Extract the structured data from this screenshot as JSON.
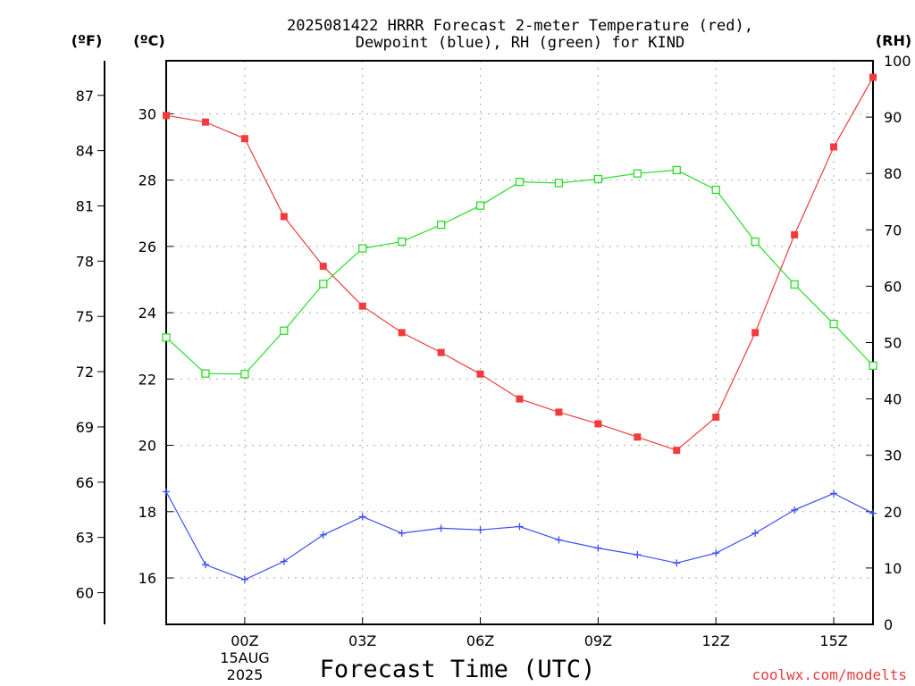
{
  "chart_data": {
    "type": "line",
    "title_line1": "2025081422 HRRR Forecast 2-meter Temperature (red),",
    "title_line2": "Dewpoint (blue), RH (green) for KIND",
    "xlabel": "Forecast Time (UTC)",
    "x": [
      -2,
      -1,
      0,
      1,
      2,
      3,
      4,
      5,
      6,
      7,
      8,
      9,
      10,
      11,
      12,
      13,
      14,
      15,
      16
    ],
    "x_tick_values": [
      0,
      3,
      6,
      9,
      12,
      15
    ],
    "x_tick_labels": [
      "00Z",
      "03Z",
      "06Z",
      "09Z",
      "12Z",
      "15Z"
    ],
    "date_label_line1": "15AUG",
    "date_label_line2": "2025",
    "xlim": [
      -2,
      16
    ],
    "left_axis": {
      "unit": "(ºC)",
      "ylim": [
        14.6,
        31.6
      ],
      "ticks": [
        16,
        18,
        20,
        22,
        24,
        26,
        28,
        30
      ]
    },
    "far_left_axis": {
      "unit": "(ºF)",
      "ticks": [
        60,
        63,
        66,
        69,
        72,
        75,
        78,
        81,
        84,
        87
      ]
    },
    "right_axis": {
      "unit": "(RH)",
      "ylim": [
        0,
        100
      ],
      "ticks": [
        0,
        10,
        20,
        30,
        40,
        50,
        60,
        70,
        80,
        90,
        100
      ]
    },
    "grid": true,
    "series": [
      {
        "key": "temperature",
        "axis": "C",
        "color": "#f03c3c",
        "marker": "filled-square",
        "values": [
          29.95,
          29.75,
          29.25,
          26.9,
          25.4,
          24.2,
          23.4,
          22.8,
          22.15,
          21.4,
          21.0,
          20.65,
          20.25,
          19.85,
          20.85,
          23.4,
          26.35,
          29.0,
          31.1
        ]
      },
      {
        "key": "dewpoint",
        "axis": "C",
        "color": "#3c50f0",
        "marker": "plus",
        "values": [
          18.6,
          16.4,
          15.95,
          16.5,
          17.3,
          17.85,
          17.35,
          17.5,
          17.45,
          17.55,
          17.15,
          16.9,
          16.7,
          16.45,
          16.75,
          17.35,
          18.05,
          18.55,
          17.95
        ]
      },
      {
        "key": "rh",
        "axis": "RH",
        "color": "#28dc28",
        "marker": "open-square",
        "values": [
          50.9,
          44.5,
          44.4,
          52.1,
          60.4,
          66.7,
          67.9,
          70.9,
          74.3,
          78.5,
          78.3,
          79.0,
          80.0,
          80.6,
          77.1,
          67.9,
          60.3,
          53.3,
          45.9
        ]
      }
    ],
    "credit": "coolwx.com/modelts",
    "credit_color": "#e63c3c"
  }
}
